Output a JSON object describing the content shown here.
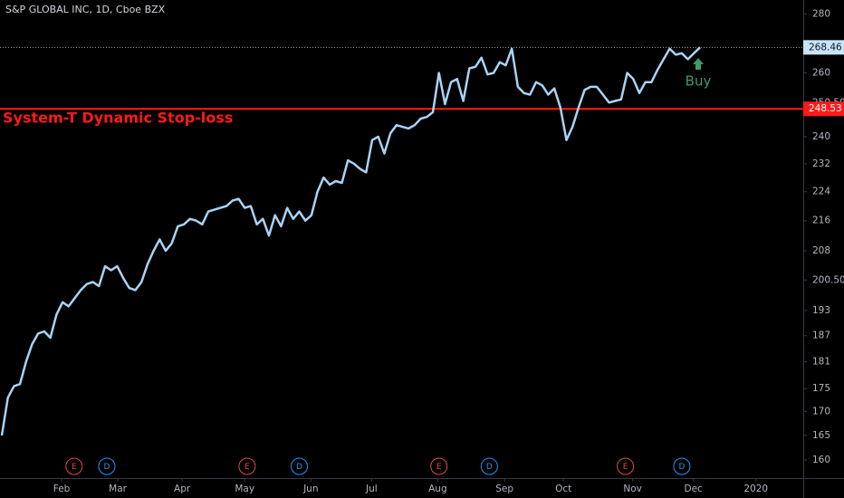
{
  "chart_data": {
    "type": "line",
    "title": "S&P GLOBAL INC, 1D, Cboe BZX",
    "log_scale": true,
    "grid": false,
    "background": "#000000",
    "series": [
      {
        "name": "S&P GLOBAL INC",
        "color": "#a9d3f5",
        "values": [
          165,
          173,
          175.5,
          176,
          181,
          185,
          187.5,
          188,
          186.5,
          192,
          195,
          194,
          196,
          198,
          199.5,
          200,
          199,
          204,
          203,
          204,
          201,
          198.5,
          198,
          200,
          204.5,
          208,
          211,
          208,
          210,
          214.5,
          215,
          216.5,
          216,
          215,
          218.5,
          219,
          219.5,
          220,
          221.5,
          222,
          219.5,
          220,
          215,
          216.5,
          212,
          217.5,
          214.5,
          219.5,
          216.5,
          218.5,
          216,
          217.5,
          224,
          228,
          226,
          227,
          226.5,
          233,
          232,
          230.5,
          229.5,
          239,
          240,
          235,
          241,
          243.5,
          243,
          242.5,
          243.5,
          245.5,
          246,
          247.5,
          260,
          250,
          257,
          258,
          251,
          261.5,
          262,
          265,
          259.5,
          260,
          263.5,
          262.5,
          268,
          255.5,
          253.5,
          253,
          257,
          256,
          253,
          255,
          249,
          239,
          243,
          249,
          254.5,
          255.5,
          255.5,
          253,
          250.5,
          251,
          251.5,
          260,
          258,
          253.5,
          257,
          257,
          261,
          264.5,
          268,
          266,
          266.5,
          264.5,
          266.5,
          268.46
        ]
      }
    ],
    "xlim": [
      -0.3,
      132
    ],
    "xticks": [
      {
        "value": 9.85,
        "label": "Feb"
      },
      {
        "value": 19.1,
        "label": "Mar"
      },
      {
        "value": 29.7,
        "label": "Apr"
      },
      {
        "value": 40,
        "label": "May"
      },
      {
        "value": 50.9,
        "label": "Jun"
      },
      {
        "value": 60.9,
        "label": "Jul"
      },
      {
        "value": 71.8,
        "label": "Aug"
      },
      {
        "value": 82.8,
        "label": "Sep"
      },
      {
        "value": 92.5,
        "label": "Oct"
      },
      {
        "value": 103.9,
        "label": "Nov"
      },
      {
        "value": 113.9,
        "label": "Dec"
      },
      {
        "value": 124.2,
        "label": "2020"
      }
    ],
    "ylim": [
      156.4,
      284.9
    ],
    "yticks": [
      160,
      165,
      170,
      175,
      181,
      187,
      193,
      {
        "value": 200.5,
        "label": "200.50"
      },
      208,
      216,
      224,
      232,
      240,
      {
        "value": 250.5,
        "label": "250.50"
      },
      260,
      280
    ],
    "last_price": {
      "value": 268.46,
      "label": "268.46"
    },
    "stop_loss": {
      "text": "System-T Dynamic Stop-loss",
      "value": 248.53,
      "label": "248.53",
      "color": "#ff1a1a"
    },
    "signal": {
      "text": "Buy",
      "x": 114.7,
      "color": "#3f9a6a"
    },
    "events": [
      {
        "label": "E",
        "x": 11.9
      },
      {
        "label": "D",
        "x": 17.3
      },
      {
        "label": "E",
        "x": 40.4
      },
      {
        "label": "D",
        "x": 49
      },
      {
        "label": "E",
        "x": 72
      },
      {
        "label": "D",
        "x": 80.3
      },
      {
        "label": "E",
        "x": 102.7
      },
      {
        "label": "D",
        "x": 112
      }
    ]
  }
}
